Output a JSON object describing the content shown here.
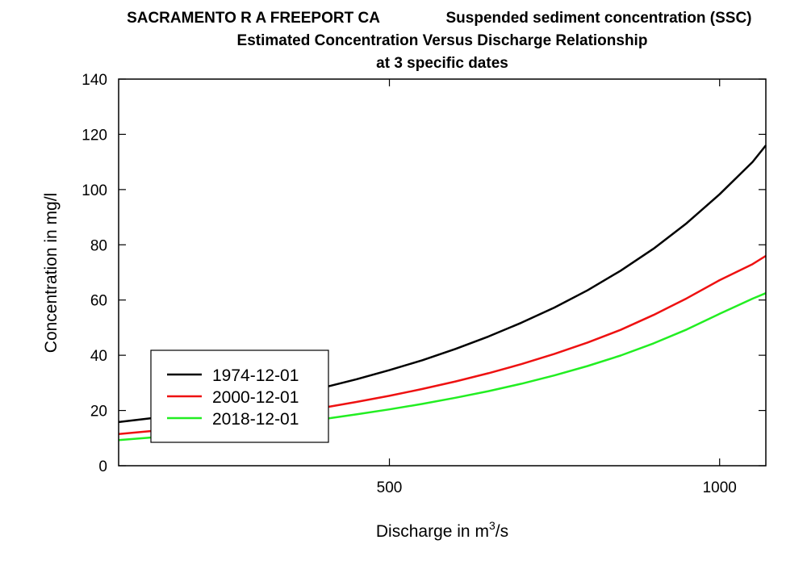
{
  "chart_data": {
    "type": "line",
    "title_line1_left": "SACRAMENTO R A FREEPORT CA",
    "title_line1_right": "Suspended sediment concentration (SSC)",
    "title_line2": "Estimated Concentration Versus Discharge Relationship",
    "title_line3": "at 3 specific dates",
    "xlabel_prefix": "Discharge in m",
    "xlabel_superscript": "3",
    "xlabel_suffix": "/s",
    "ylabel": "Concentration in mg/l",
    "xlim": [
      90,
      1070
    ],
    "ylim": [
      0,
      140
    ],
    "x_ticks": [
      500,
      1000
    ],
    "y_ticks": [
      0,
      20,
      40,
      60,
      80,
      100,
      120,
      140
    ],
    "x_ticks_minor": [],
    "grid": false,
    "legend_position": "bottom-left",
    "x": [
      90,
      150,
      200,
      250,
      300,
      350,
      400,
      450,
      500,
      550,
      600,
      650,
      700,
      750,
      800,
      850,
      900,
      950,
      1000,
      1050,
      1070
    ],
    "series": [
      {
        "name": "1974-12-01",
        "color": "#000000",
        "values": [
          15.8,
          17.5,
          19.2,
          21.0,
          23.1,
          25.5,
          28.3,
          31.3,
          34.6,
          38.2,
          42.3,
          46.8,
          51.8,
          57.3,
          63.5,
          70.6,
          78.6,
          87.8,
          98.3,
          110.0,
          116.0
        ]
      },
      {
        "name": "2000-12-01",
        "color": "#ee1111",
        "values": [
          11.5,
          12.8,
          14.2,
          15.6,
          17.2,
          19.0,
          21.0,
          23.1,
          25.3,
          27.8,
          30.5,
          33.5,
          36.8,
          40.5,
          44.6,
          49.2,
          54.6,
          60.6,
          67.2,
          73.0,
          76.0
        ]
      },
      {
        "name": "2018-12-01",
        "color": "#22ee22",
        "values": [
          9.3,
          10.4,
          11.5,
          12.7,
          14.0,
          15.4,
          16.9,
          18.6,
          20.4,
          22.4,
          24.6,
          27.0,
          29.7,
          32.7,
          36.1,
          39.9,
          44.3,
          49.3,
          55.0,
          60.5,
          62.5
        ]
      }
    ]
  }
}
